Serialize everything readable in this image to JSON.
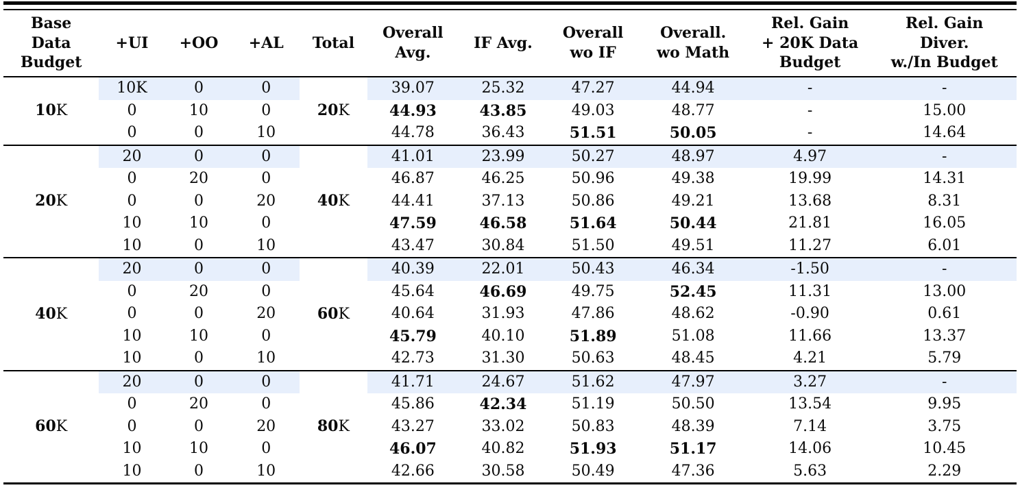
{
  "table": {
    "highlight_color": "#e7effc",
    "columns": [
      "Base\nData\nBudget",
      "+UI",
      "+OO",
      "+AL",
      "Total",
      "Overall\nAvg.",
      "IF Avg.",
      "Overall\nwo IF",
      "Overall.\nwo Math",
      "Rel. Gain\n+ 20K Data\nBudget",
      "Rel. Gain\nDiver.\nw./In Budget"
    ],
    "groups": [
      {
        "base_value": "10",
        "base_unit": "K",
        "total_value": "20",
        "total_unit": "K",
        "rows": [
          {
            "highlight": true,
            "mix": [
              "10K",
              "0",
              "0"
            ],
            "values": [
              "39.07",
              "25.32",
              "47.27",
              "44.94",
              "-",
              "-"
            ],
            "bold": []
          },
          {
            "highlight": false,
            "mix": [
              "0",
              "10",
              "0"
            ],
            "values": [
              "44.93",
              "43.85",
              "49.03",
              "48.77",
              "-",
              "15.00"
            ],
            "bold": [
              0,
              1
            ]
          },
          {
            "highlight": false,
            "mix": [
              "0",
              "0",
              "10"
            ],
            "values": [
              "44.78",
              "36.43",
              "51.51",
              "50.05",
              "-",
              "14.64"
            ],
            "bold": [
              2,
              3
            ]
          }
        ]
      },
      {
        "base_value": "20",
        "base_unit": "K",
        "total_value": "40",
        "total_unit": "K",
        "rows": [
          {
            "highlight": true,
            "mix": [
              "20",
              "0",
              "0"
            ],
            "values": [
              "41.01",
              "23.99",
              "50.27",
              "48.97",
              "4.97",
              "-"
            ],
            "bold": []
          },
          {
            "highlight": false,
            "mix": [
              "0",
              "20",
              "0"
            ],
            "values": [
              "46.87",
              "46.25",
              "50.96",
              "49.38",
              "19.99",
              "14.31"
            ],
            "bold": []
          },
          {
            "highlight": false,
            "mix": [
              "0",
              "0",
              "20"
            ],
            "values": [
              "44.41",
              "37.13",
              "50.86",
              "49.21",
              "13.68",
              "8.31"
            ],
            "bold": []
          },
          {
            "highlight": false,
            "mix": [
              "10",
              "10",
              "0"
            ],
            "values": [
              "47.59",
              "46.58",
              "51.64",
              "50.44",
              "21.81",
              "16.05"
            ],
            "bold": [
              0,
              1,
              2,
              3
            ]
          },
          {
            "highlight": false,
            "mix": [
              "10",
              "0",
              "10"
            ],
            "values": [
              "43.47",
              "30.84",
              "51.50",
              "49.51",
              "11.27",
              "6.01"
            ],
            "bold": []
          }
        ]
      },
      {
        "base_value": "40",
        "base_unit": "K",
        "total_value": "60",
        "total_unit": "K",
        "rows": [
          {
            "highlight": true,
            "mix": [
              "20",
              "0",
              "0"
            ],
            "values": [
              "40.39",
              "22.01",
              "50.43",
              "46.34",
              "-1.50",
              "-"
            ],
            "bold": []
          },
          {
            "highlight": false,
            "mix": [
              "0",
              "20",
              "0"
            ],
            "values": [
              "45.64",
              "46.69",
              "49.75",
              "52.45",
              "11.31",
              "13.00"
            ],
            "bold": [
              1,
              3
            ]
          },
          {
            "highlight": false,
            "mix": [
              "0",
              "0",
              "20"
            ],
            "values": [
              "40.64",
              "31.93",
              "47.86",
              "48.62",
              "-0.90",
              "0.61"
            ],
            "bold": []
          },
          {
            "highlight": false,
            "mix": [
              "10",
              "10",
              "0"
            ],
            "values": [
              "45.79",
              "40.10",
              "51.89",
              "51.08",
              "11.66",
              "13.37"
            ],
            "bold": [
              0,
              2
            ]
          },
          {
            "highlight": false,
            "mix": [
              "10",
              "0",
              "10"
            ],
            "values": [
              "42.73",
              "31.30",
              "50.63",
              "48.45",
              "4.21",
              "5.79"
            ],
            "bold": []
          }
        ]
      },
      {
        "base_value": "60",
        "base_unit": "K",
        "total_value": "80",
        "total_unit": "K",
        "rows": [
          {
            "highlight": true,
            "mix": [
              "20",
              "0",
              "0"
            ],
            "values": [
              "41.71",
              "24.67",
              "51.62",
              "47.97",
              "3.27",
              "-"
            ],
            "bold": []
          },
          {
            "highlight": false,
            "mix": [
              "0",
              "20",
              "0"
            ],
            "values": [
              "45.86",
              "42.34",
              "51.19",
              "50.50",
              "13.54",
              "9.95"
            ],
            "bold": [
              1
            ]
          },
          {
            "highlight": false,
            "mix": [
              "0",
              "0",
              "20"
            ],
            "values": [
              "43.27",
              "33.02",
              "50.83",
              "48.39",
              "7.14",
              "3.75"
            ],
            "bold": []
          },
          {
            "highlight": false,
            "mix": [
              "10",
              "10",
              "0"
            ],
            "values": [
              "46.07",
              "40.82",
              "51.93",
              "51.17",
              "14.06",
              "10.45"
            ],
            "bold": [
              0,
              2,
              3
            ]
          },
          {
            "highlight": false,
            "mix": [
              "10",
              "0",
              "10"
            ],
            "values": [
              "42.66",
              "30.58",
              "50.49",
              "47.36",
              "5.63",
              "2.29"
            ],
            "bold": []
          }
        ]
      }
    ],
    "column_widths_pct": [
      9.4,
      6.5,
      6.65,
      6.6,
      6.65,
      9.0,
      8.75,
      8.95,
      10.75,
      12.25,
      14.2
    ]
  }
}
